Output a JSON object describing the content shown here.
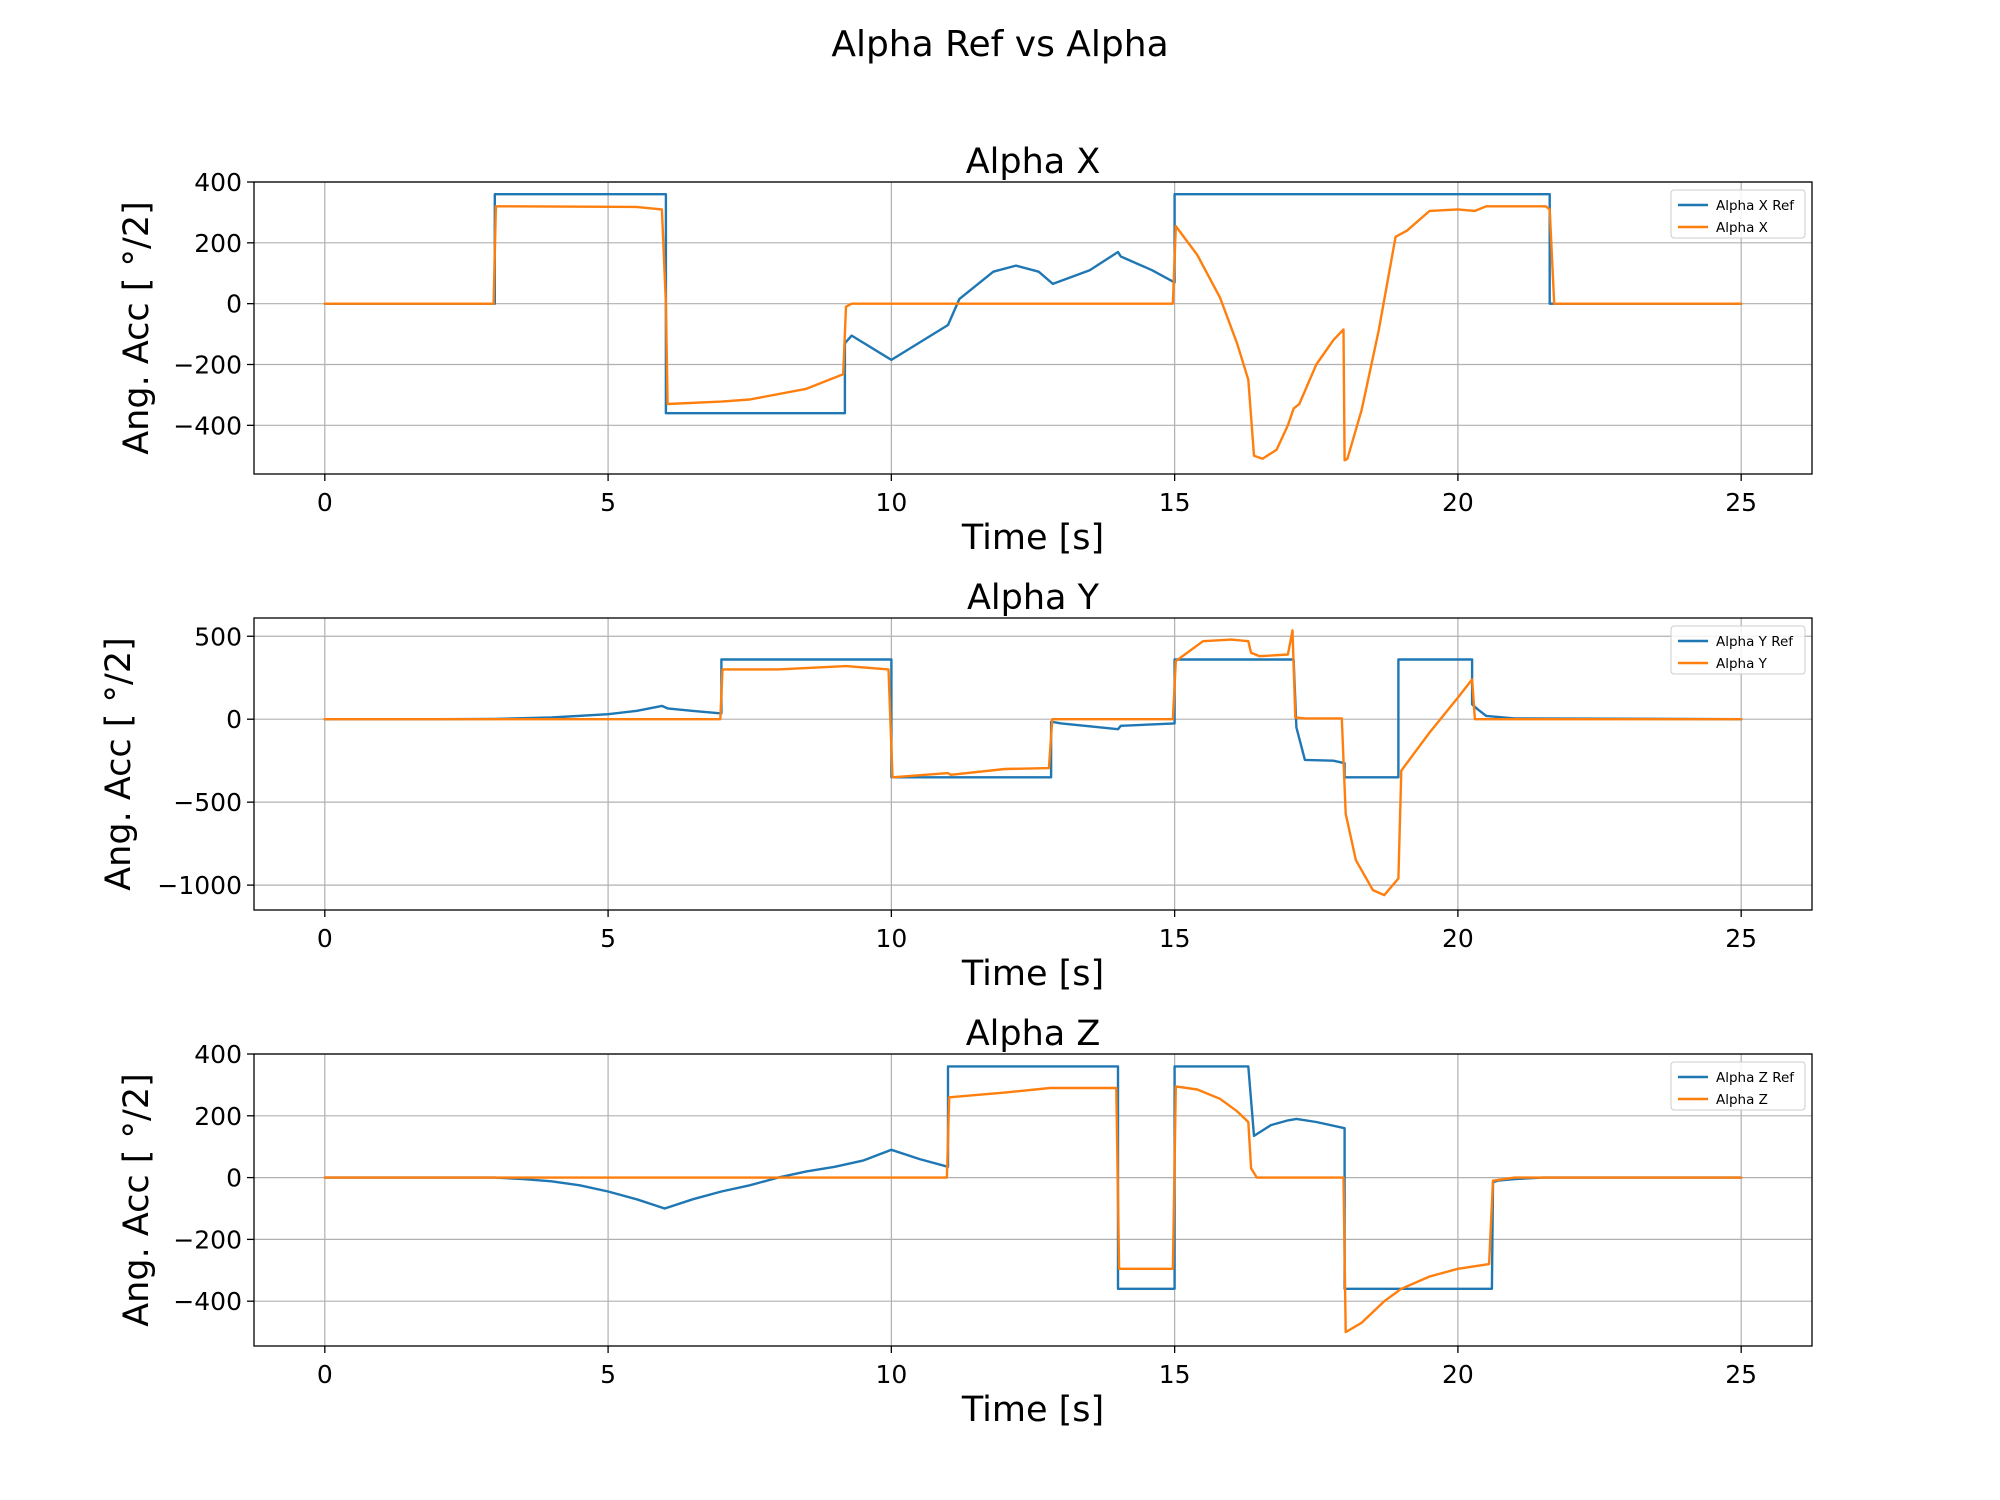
{
  "figure": {
    "suptitle": "Alpha Ref vs Alpha",
    "colors": {
      "ref": "#1f77b4",
      "actual": "#ff7f0e",
      "grid": "#b0b0b0",
      "axes": "#000000"
    }
  },
  "chart_data": [
    {
      "type": "line",
      "title": "Alpha X",
      "xlabel": "Time [s]",
      "ylabel": "Ang. Acc [ °/2]",
      "xlim": [
        -1.25,
        26.25
      ],
      "ylim": [
        -560,
        400
      ],
      "xticks": [
        0,
        5,
        10,
        15,
        20,
        25
      ],
      "xtick_labels": [
        "0",
        "5",
        "10",
        "15",
        "20",
        "25"
      ],
      "yticks": [
        -400,
        -200,
        0,
        200,
        400
      ],
      "ytick_labels": [
        "−400",
        "−200",
        "0",
        "200",
        "400"
      ],
      "grid": true,
      "legend": "top-right",
      "series": [
        {
          "name": "Alpha X Ref",
          "color": "#1f77b4",
          "x": [
            0,
            3,
            3,
            6.02,
            6.02,
            9.18,
            9.18,
            9.3,
            10,
            11,
            11.2,
            11.8,
            12.2,
            12.6,
            12.85,
            13.5,
            14,
            14.05,
            14.6,
            15,
            15,
            21.62,
            21.62,
            25
          ],
          "y": [
            0,
            0,
            360,
            360,
            -360,
            -360,
            -130,
            -105,
            -185,
            -70,
            15,
            105,
            125,
            105,
            65,
            110,
            170,
            155,
            110,
            70,
            360,
            360,
            0,
            0
          ]
        },
        {
          "name": "Alpha X",
          "color": "#ff7f0e",
          "x": [
            0,
            2.98,
            3.02,
            5.5,
            5.95,
            6.02,
            6.05,
            7,
            7.5,
            8.5,
            9.15,
            9.2,
            9.3,
            10,
            11,
            12,
            13,
            14,
            14.9,
            14.97,
            15.02,
            15.4,
            15.8,
            16.1,
            16.3,
            16.4,
            16.55,
            16.8,
            17,
            17.1,
            17.2,
            17.5,
            17.8,
            17.98,
            18.0,
            18.05,
            18.3,
            18.6,
            18.9,
            19.1,
            19.5,
            20,
            20.3,
            20.5,
            21.55,
            21.62,
            21.7,
            25
          ],
          "y": [
            0,
            0,
            320,
            318,
            310,
            0,
            -330,
            -322,
            -315,
            -280,
            -232,
            -10,
            0,
            0,
            0,
            0,
            0,
            0,
            0,
            0,
            255,
            160,
            20,
            -130,
            -250,
            -500,
            -510,
            -480,
            -400,
            -345,
            -330,
            -200,
            -120,
            -85,
            -515,
            -510,
            -350,
            -90,
            220,
            240,
            305,
            310,
            305,
            320,
            320,
            310,
            0,
            0
          ]
        }
      ]
    },
    {
      "type": "line",
      "title": "Alpha Y",
      "xlabel": "Time [s]",
      "ylabel": "Ang. Acc [ °/2]",
      "xlim": [
        -1.25,
        26.25
      ],
      "ylim": [
        -1150,
        610
      ],
      "xticks": [
        0,
        5,
        10,
        15,
        20,
        25
      ],
      "xtick_labels": [
        "0",
        "5",
        "10",
        "15",
        "20",
        "25"
      ],
      "yticks": [
        -1000,
        -500,
        0,
        500
      ],
      "ytick_labels": [
        "−1000",
        "−500",
        "0",
        "500"
      ],
      "grid": true,
      "legend": "top-right",
      "series": [
        {
          "name": "Alpha Y Ref",
          "color": "#1f77b4",
          "x": [
            0,
            2,
            3,
            4,
            5,
            5.5,
            5.95,
            6.05,
            6.5,
            7,
            7,
            10,
            10,
            12.82,
            12.82,
            13,
            14,
            14.05,
            15,
            15,
            17.1,
            17.15,
            17.3,
            17.8,
            18.0,
            18.0,
            18.95,
            18.95,
            20.25,
            20.25,
            20.35,
            20.5,
            21,
            25
          ],
          "y": [
            0,
            0,
            2,
            10,
            30,
            50,
            80,
            65,
            50,
            35,
            360,
            360,
            -350,
            -350,
            -15,
            -25,
            -60,
            -40,
            -25,
            360,
            360,
            -50,
            -245,
            -250,
            -265,
            -350,
            -350,
            360,
            360,
            90,
            60,
            20,
            5,
            0
          ]
        },
        {
          "name": "Alpha Y",
          "color": "#ff7f0e",
          "x": [
            0,
            6.98,
            7.02,
            8,
            9.2,
            9.95,
            10.02,
            11,
            11.05,
            12,
            12.78,
            12.84,
            13,
            14.97,
            15.02,
            15.5,
            16,
            16.3,
            16.35,
            16.5,
            17,
            17.08,
            17.13,
            17.3,
            17.95,
            18.02,
            18.2,
            18.5,
            18.7,
            18.9,
            18.95,
            19.0,
            19.5,
            20.0,
            20.25,
            20.3,
            25
          ],
          "y": [
            0,
            0,
            300,
            300,
            320,
            300,
            -350,
            -325,
            -335,
            -300,
            -295,
            0,
            0,
            0,
            350,
            470,
            480,
            470,
            400,
            380,
            390,
            535,
            10,
            5,
            5,
            -570,
            -850,
            -1030,
            -1060,
            -980,
            -960,
            -310,
            -80,
            130,
            240,
            0,
            0
          ]
        }
      ]
    },
    {
      "type": "line",
      "title": "Alpha Z",
      "xlabel": "Time [s]",
      "ylabel": "Ang. Acc [ °/2]",
      "xlim": [
        -1.25,
        26.25
      ],
      "ylim": [
        -545,
        400
      ],
      "xticks": [
        0,
        5,
        10,
        15,
        20,
        25
      ],
      "xtick_labels": [
        "0",
        "5",
        "10",
        "15",
        "20",
        "25"
      ],
      "yticks": [
        -400,
        -200,
        0,
        200,
        400
      ],
      "ytick_labels": [
        "−400",
        "−200",
        "0",
        "200",
        "400"
      ],
      "grid": true,
      "legend": "top-right",
      "series": [
        {
          "name": "Alpha Z Ref",
          "color": "#1f77b4",
          "x": [
            0,
            3,
            3.5,
            4,
            4.5,
            5,
            5.5,
            6,
            6.5,
            7,
            7.5,
            8,
            8.5,
            9,
            9.5,
            10,
            10.5,
            11,
            11,
            14,
            14,
            15,
            15,
            16.3,
            16.4,
            16.7,
            17,
            17.15,
            17.5,
            18,
            18,
            20.6,
            20.62,
            20.7,
            21,
            21.5,
            25
          ],
          "y": [
            0,
            0,
            -5,
            -12,
            -25,
            -45,
            -70,
            -100,
            -70,
            -45,
            -25,
            0,
            20,
            35,
            55,
            90,
            60,
            35,
            360,
            360,
            -360,
            -360,
            360,
            360,
            135,
            170,
            185,
            190,
            180,
            160,
            -360,
            -360,
            -15,
            -10,
            -5,
            0,
            0
          ]
        },
        {
          "name": "Alpha Z",
          "color": "#ff7f0e",
          "x": [
            0,
            10.98,
            11.02,
            12,
            12.8,
            13.97,
            14.02,
            14.97,
            15.02,
            15.4,
            15.8,
            16.1,
            16.3,
            16.35,
            16.45,
            17,
            17.98,
            18.02,
            18.3,
            18.7,
            19,
            19.5,
            20,
            20.55,
            20.62,
            21,
            25
          ],
          "y": [
            0,
            0,
            260,
            275,
            290,
            290,
            -295,
            -295,
            295,
            285,
            255,
            215,
            180,
            30,
            0,
            0,
            0,
            -500,
            -470,
            -400,
            -360,
            -320,
            -295,
            -280,
            -10,
            0,
            0
          ]
        }
      ]
    }
  ]
}
